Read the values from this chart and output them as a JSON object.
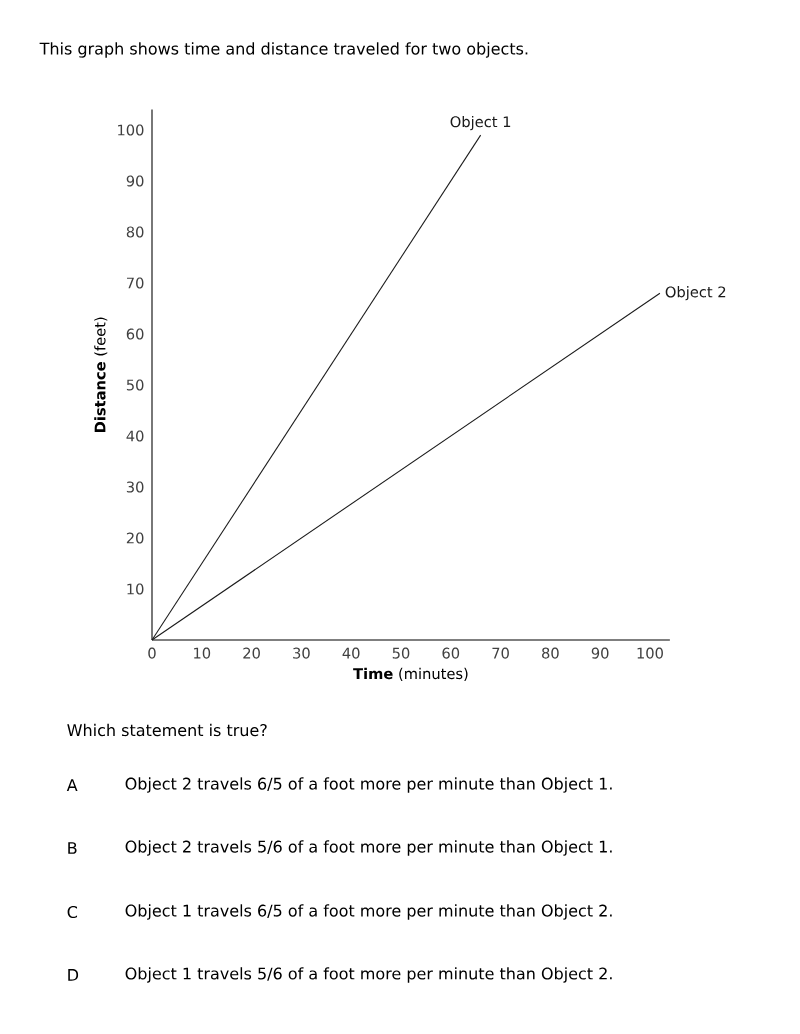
{
  "chart_data": {
    "type": "line",
    "title": "This graph shows time and distance traveled for two objects.",
    "xlabel": "**Time** (minutes)",
    "ylabel": "**Distance** (feet)",
    "series": [
      {
        "name": "Object 1",
        "color": "#1a1a1a",
        "x": [
          0,
          66
        ],
        "values": [
          0,
          99
        ]
      },
      {
        "name": "Object 2",
        "color": "#1a1a1a",
        "x": [
          0,
          102
        ],
        "values": [
          0,
          68
        ]
      }
    ],
    "xlim": [
      0,
      104
    ],
    "ylim": [
      0,
      104
    ],
    "xticks": [
      0,
      10,
      20,
      30,
      40,
      50,
      60,
      70,
      80,
      90,
      100
    ],
    "yticks": [
      10,
      20,
      30,
      40,
      50,
      60,
      70,
      80,
      90,
      100
    ],
    "line_style": "solid",
    "grid": false,
    "annotations": [
      "Which statement is true?",
      "A",
      "Object 2 travels 6/5 of a foot more per minute than Object 1.",
      "B",
      "Object 2 travels 5/6 of a foot more per minute than Object 1.",
      "C",
      "Object 1 travels 6/5 of a foot more per minute than Object 2.",
      "D",
      "Object 1 travels 5/6 of a foot more per minute than Object 2."
    ]
  }
}
